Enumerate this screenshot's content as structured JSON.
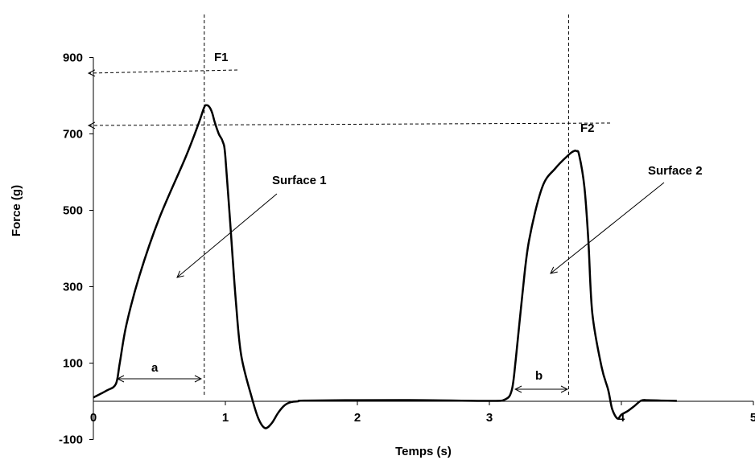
{
  "chart_data": {
    "type": "line",
    "xlabel": "Temps (s)",
    "ylabel": "Force (g)",
    "xlim": [
      0,
      5
    ],
    "ylim": [
      -100,
      900
    ],
    "xticks": [
      0,
      1,
      2,
      3,
      4,
      5
    ],
    "yticks": [
      -100,
      100,
      300,
      500,
      700,
      900
    ],
    "grid": false,
    "x": [
      0,
      0.1,
      0.17,
      0.2,
      0.25,
      0.35,
      0.5,
      0.7,
      0.8,
      0.84,
      0.86,
      0.88,
      0.9,
      0.92,
      0.95,
      0.98,
      1.0,
      1.04,
      1.08,
      1.12,
      1.2,
      1.25,
      1.3,
      1.35,
      1.4,
      1.45,
      1.5,
      1.55,
      1.6,
      2.0,
      2.5,
      3.0,
      3.12,
      3.17,
      3.2,
      3.25,
      3.3,
      3.4,
      3.5,
      3.6,
      3.64,
      3.66,
      3.68,
      3.72,
      3.75,
      3.78,
      3.85,
      3.9,
      3.93,
      3.97,
      4.0,
      4.05,
      4.1,
      4.15,
      4.2,
      4.3,
      4.42
    ],
    "y": [
      10,
      28,
      45,
      100,
      200,
      330,
      480,
      640,
      730,
      770,
      775,
      770,
      755,
      730,
      700,
      680,
      640,
      450,
      260,
      120,
      10,
      -45,
      -70,
      -58,
      -30,
      -10,
      -2,
      0,
      2,
      3,
      3,
      1,
      5,
      30,
      110,
      280,
      420,
      560,
      610,
      645,
      655,
      655,
      645,
      560,
      420,
      230,
      90,
      30,
      -20,
      -45,
      -35,
      -25,
      -12,
      2,
      3,
      2,
      1
    ],
    "vlines": [
      0.84,
      3.6
    ],
    "annotations": {
      "f1": "F1",
      "f2": "F2",
      "surface1": "Surface 1",
      "surface2": "Surface 2",
      "a": "a",
      "b": "b"
    }
  }
}
